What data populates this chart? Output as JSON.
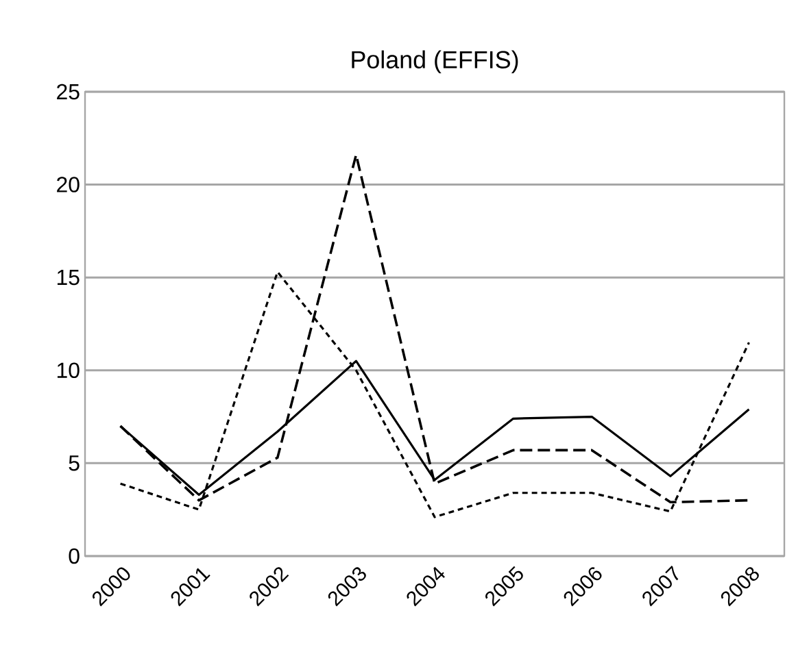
{
  "chart_data": {
    "type": "line",
    "title": "Poland (EFFIS)",
    "categories": [
      "2000",
      "2001",
      "2002",
      "2003",
      "2004",
      "2005",
      "2006",
      "2007",
      "2008"
    ],
    "series": [
      {
        "color": "#000000",
        "line_style": "solid",
        "values": [
          7.0,
          3.3,
          6.7,
          10.5,
          4.1,
          7.4,
          7.5,
          4.3,
          7.9
        ]
      },
      {
        "color": "#000000",
        "line_style": "dashed",
        "values": [
          7.0,
          3.0,
          5.3,
          21.6,
          3.9,
          5.7,
          5.7,
          2.9,
          3.0
        ]
      },
      {
        "color": "#000000",
        "line_style": "dotted",
        "values": [
          3.9,
          2.5,
          15.3,
          10.0,
          2.1,
          3.4,
          3.4,
          2.4,
          11.5
        ]
      }
    ],
    "ylim": [
      0,
      25
    ],
    "yticks": [
      0,
      5,
      10,
      15,
      20,
      25
    ],
    "grid": "y",
    "marker": "none"
  }
}
